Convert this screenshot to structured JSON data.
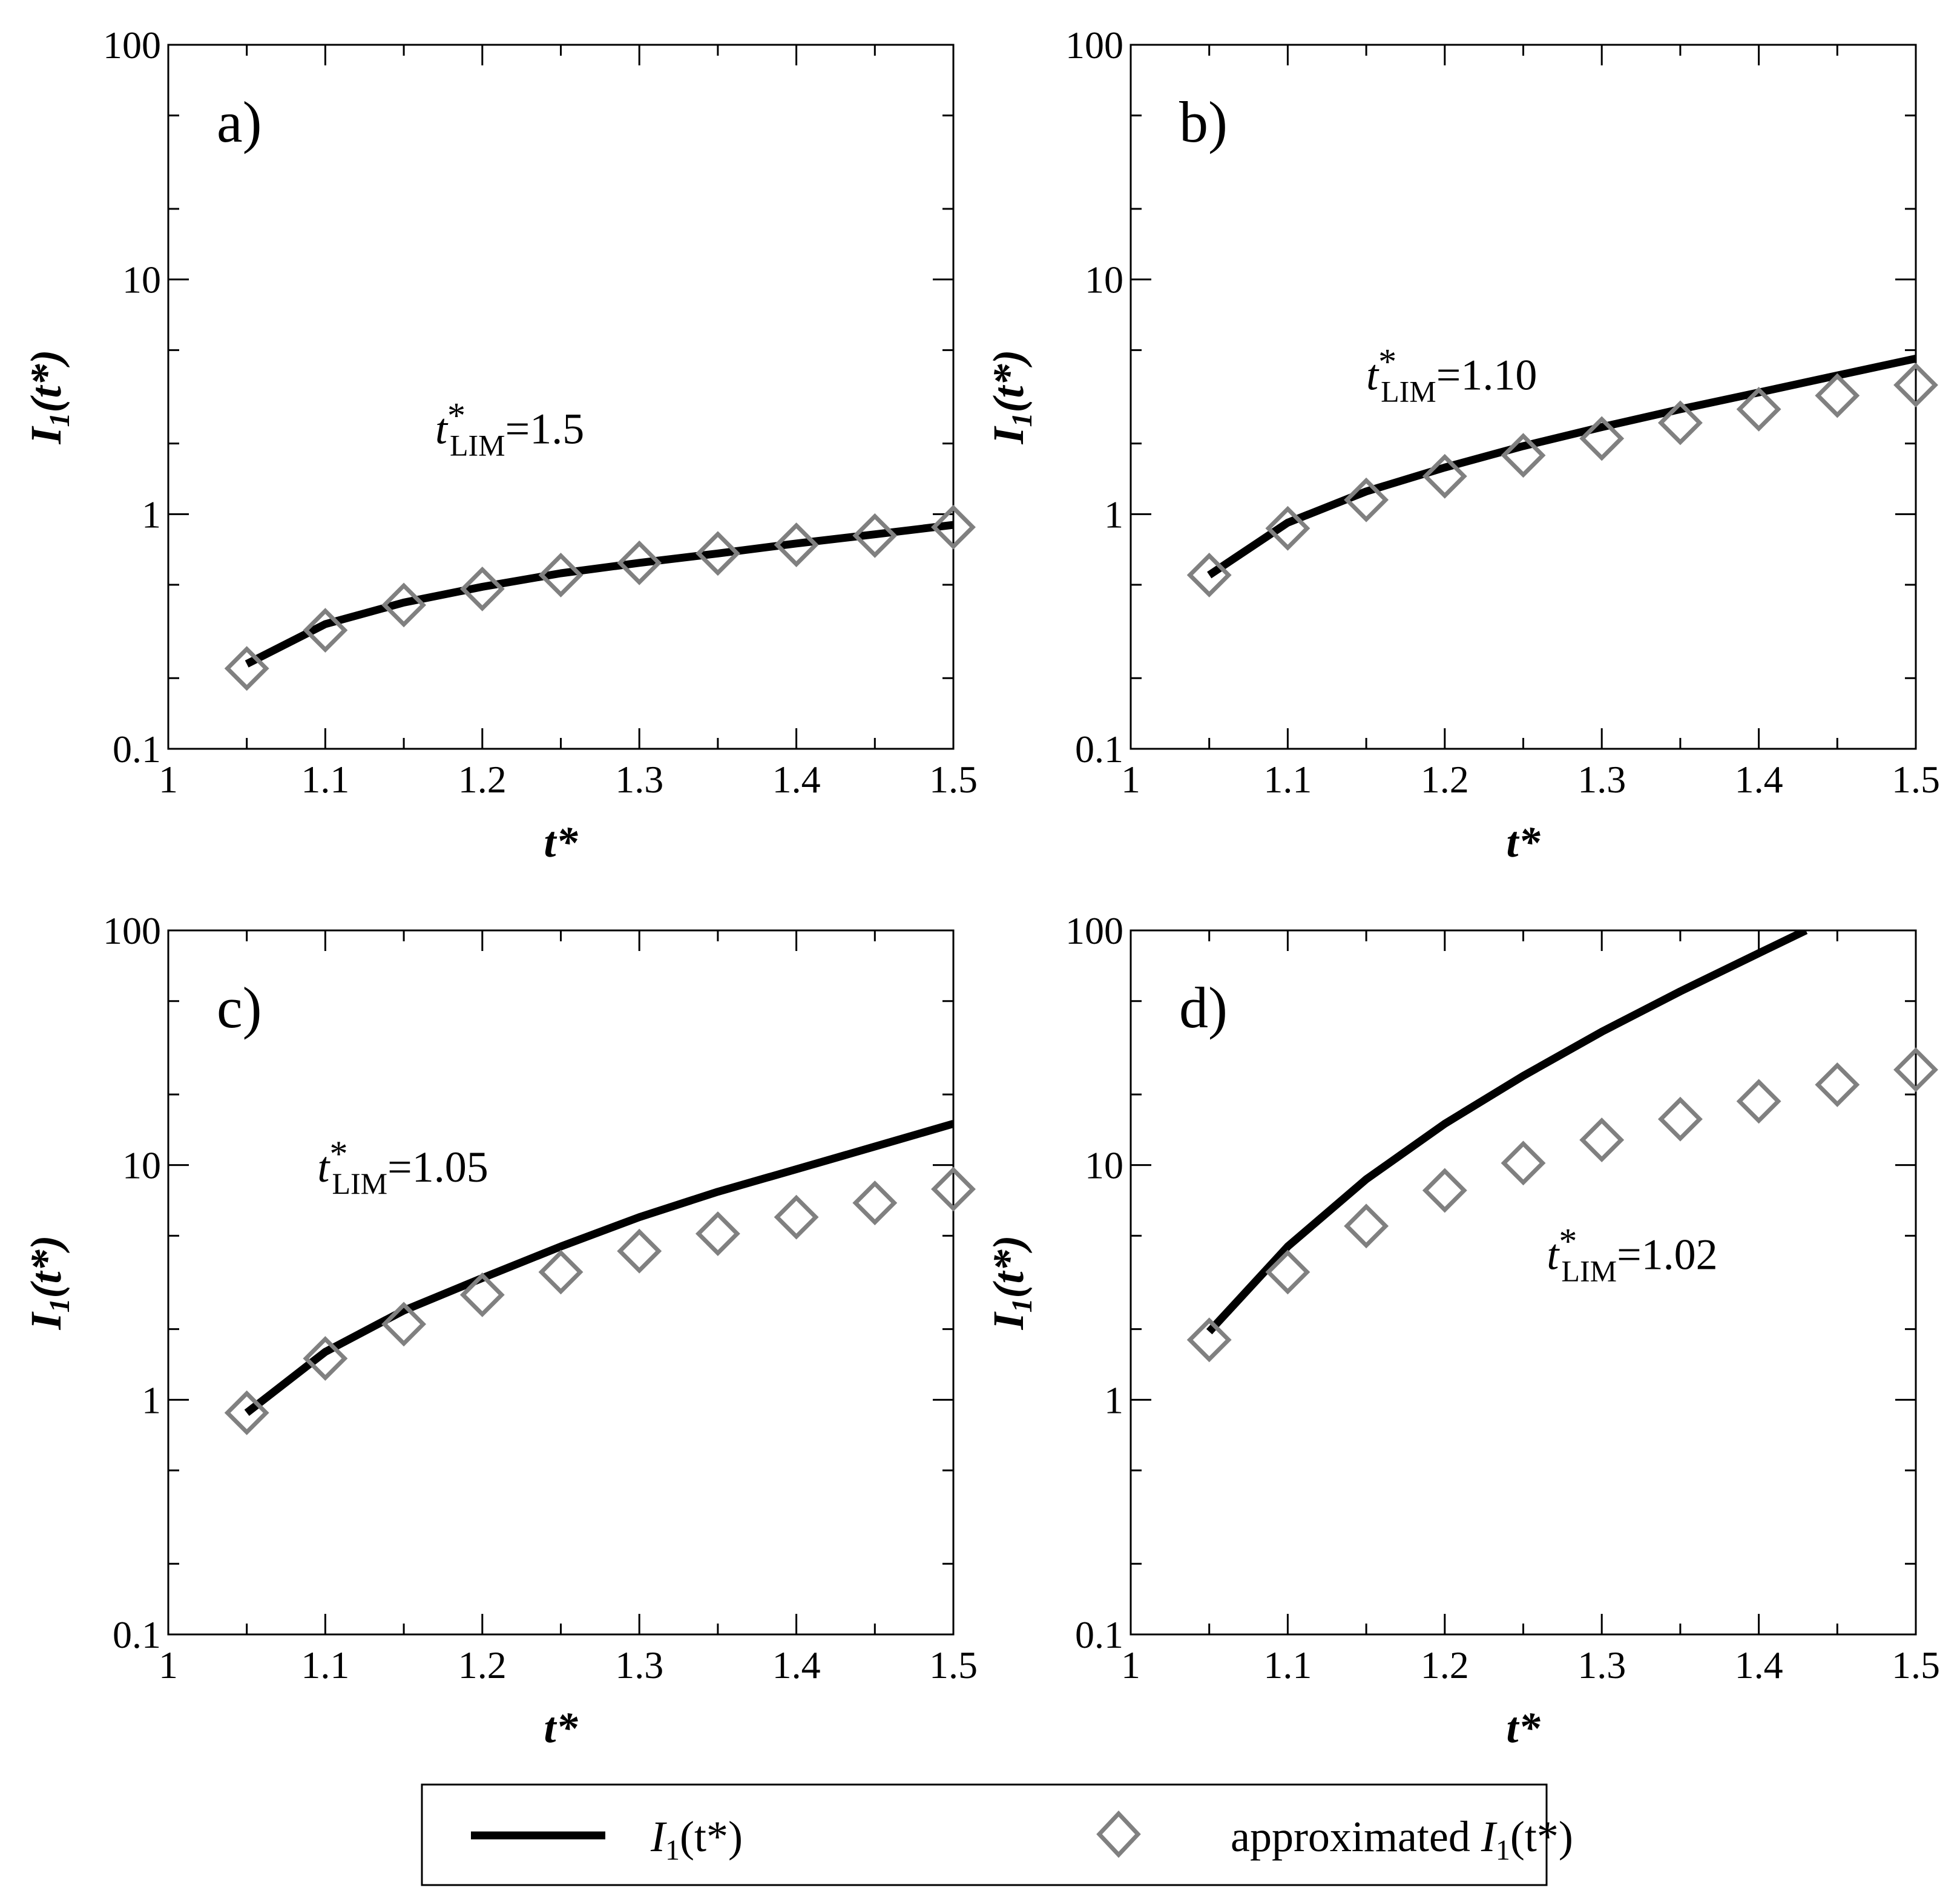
{
  "chart_data": [
    {
      "type": "line",
      "panel_label": "a)",
      "xlabel": "t*",
      "ylabel_main": "I",
      "ylabel_sub": "1",
      "ylabel_rest": "(t*)",
      "xlim": [
        1,
        1.5
      ],
      "ylim": [
        0.1,
        100
      ],
      "yscale": "log",
      "x_ticks": [
        1,
        1.1,
        1.2,
        1.3,
        1.4,
        1.5
      ],
      "x_tick_labels": [
        "1",
        "1.1",
        "1.2",
        "1.3",
        "1.4",
        "1.5"
      ],
      "y_ticks": [
        0.1,
        1,
        10,
        100
      ],
      "y_tick_labels": [
        "0.1",
        "1",
        "10",
        "100"
      ],
      "annotation": {
        "t": "t",
        "sup": "*",
        "sub": "LIM",
        "value": "=1.5"
      },
      "annotation_anchor": {
        "x": 1.17,
        "y": 2.0
      },
      "series": [
        {
          "name": "I1(t*)",
          "style": "line",
          "x": [
            1.05,
            1.1,
            1.15,
            1.2,
            1.25,
            1.3,
            1.35,
            1.4,
            1.45,
            1.5
          ],
          "y": [
            0.23,
            0.34,
            0.42,
            0.49,
            0.56,
            0.62,
            0.68,
            0.75,
            0.82,
            0.9
          ]
        },
        {
          "name": "approximated I1(t*)",
          "style": "marker",
          "x": [
            1.05,
            1.1,
            1.15,
            1.2,
            1.25,
            1.3,
            1.35,
            1.4,
            1.45,
            1.5
          ],
          "y": [
            0.22,
            0.32,
            0.41,
            0.48,
            0.55,
            0.62,
            0.68,
            0.74,
            0.81,
            0.88
          ]
        }
      ]
    },
    {
      "type": "line",
      "panel_label": "b)",
      "xlabel": "t*",
      "ylabel_main": "I",
      "ylabel_sub": "1",
      "ylabel_rest": "(t*)",
      "xlim": [
        1,
        1.5
      ],
      "ylim": [
        0.1,
        100
      ],
      "yscale": "log",
      "x_ticks": [
        1,
        1.1,
        1.2,
        1.3,
        1.4,
        1.5
      ],
      "x_tick_labels": [
        "1",
        "1.1",
        "1.2",
        "1.3",
        "1.4",
        "1.5"
      ],
      "y_ticks": [
        0.1,
        1,
        10,
        100
      ],
      "y_tick_labels": [
        "0.1",
        "1",
        "10",
        "100"
      ],
      "annotation": {
        "t": "t",
        "sup": "*",
        "sub": "LIM",
        "value": "=1.10"
      },
      "annotation_anchor": {
        "x": 1.15,
        "y": 3.4
      },
      "series": [
        {
          "name": "I1(t*)",
          "style": "line",
          "x": [
            1.05,
            1.1,
            1.15,
            1.2,
            1.25,
            1.3,
            1.35,
            1.4,
            1.45,
            1.5
          ],
          "y": [
            0.55,
            0.92,
            1.25,
            1.58,
            1.95,
            2.35,
            2.8,
            3.3,
            3.9,
            4.6
          ]
        },
        {
          "name": "approximated I1(t*)",
          "style": "marker",
          "x": [
            1.05,
            1.1,
            1.15,
            1.2,
            1.25,
            1.3,
            1.35,
            1.4,
            1.45,
            1.5
          ],
          "y": [
            0.55,
            0.87,
            1.15,
            1.45,
            1.78,
            2.1,
            2.45,
            2.8,
            3.2,
            3.55
          ]
        }
      ]
    },
    {
      "type": "line",
      "panel_label": "c)",
      "xlabel": "t*",
      "ylabel_main": "I",
      "ylabel_sub": "1",
      "ylabel_rest": "(t*)",
      "xlim": [
        1,
        1.5
      ],
      "ylim": [
        0.1,
        100
      ],
      "yscale": "log",
      "x_ticks": [
        1,
        1.1,
        1.2,
        1.3,
        1.4,
        1.5
      ],
      "x_tick_labels": [
        "1",
        "1.1",
        "1.2",
        "1.3",
        "1.4",
        "1.5"
      ],
      "y_ticks": [
        0.1,
        1,
        10,
        100
      ],
      "y_tick_labels": [
        "0.1",
        "1",
        "10",
        "100"
      ],
      "annotation": {
        "t": "t",
        "sup": "*",
        "sub": "LIM",
        "value": "=1.05"
      },
      "annotation_anchor": {
        "x": 1.095,
        "y": 8.5
      },
      "series": [
        {
          "name": "I1(t*)",
          "style": "line",
          "x": [
            1.05,
            1.1,
            1.15,
            1.2,
            1.25,
            1.3,
            1.35,
            1.4,
            1.45,
            1.5
          ],
          "y": [
            0.88,
            1.6,
            2.4,
            3.3,
            4.5,
            6.0,
            7.7,
            9.6,
            12.0,
            15.0
          ]
        },
        {
          "name": "approximated I1(t*)",
          "style": "marker",
          "x": [
            1.05,
            1.1,
            1.15,
            1.2,
            1.25,
            1.3,
            1.35,
            1.4,
            1.45,
            1.5
          ],
          "y": [
            0.88,
            1.5,
            2.1,
            2.8,
            3.5,
            4.3,
            5.1,
            6.0,
            6.9,
            7.9
          ]
        }
      ]
    },
    {
      "type": "line",
      "panel_label": "d)",
      "xlabel": "t*",
      "ylabel_main": "I",
      "ylabel_sub": "1",
      "ylabel_rest": "(t*)",
      "xlim": [
        1,
        1.5
      ],
      "ylim": [
        0.1,
        100
      ],
      "yscale": "log",
      "x_ticks": [
        1,
        1.1,
        1.2,
        1.3,
        1.4,
        1.5
      ],
      "x_tick_labels": [
        "1",
        "1.1",
        "1.2",
        "1.3",
        "1.4",
        "1.5"
      ],
      "y_ticks": [
        0.1,
        1,
        10,
        100
      ],
      "y_tick_labels": [
        "0.1",
        "1",
        "10",
        "100"
      ],
      "annotation": {
        "t": "t",
        "sup": "*",
        "sub": "LIM",
        "value": "=1.02"
      },
      "annotation_anchor": {
        "x": 1.265,
        "y": 3.6
      },
      "series": [
        {
          "name": "I1(t*)",
          "style": "line",
          "x": [
            1.05,
            1.1,
            1.15,
            1.2,
            1.25,
            1.3,
            1.35,
            1.4,
            1.43
          ],
          "y": [
            1.95,
            4.5,
            8.7,
            15.0,
            24.0,
            37.0,
            55.0,
            80.0,
            100.0
          ]
        },
        {
          "name": "approximated I1(t*)",
          "style": "marker",
          "x": [
            1.05,
            1.1,
            1.15,
            1.2,
            1.25,
            1.3,
            1.35,
            1.4,
            1.45,
            1.5
          ],
          "y": [
            1.8,
            3.5,
            5.5,
            7.8,
            10.2,
            12.8,
            15.7,
            18.7,
            22.0,
            25.5
          ]
        }
      ]
    }
  ],
  "legend": {
    "line_label": {
      "main": "I",
      "sub": "1",
      "rest": "(t*)"
    },
    "marker_label": {
      "prefix": "approximated ",
      "main": "I",
      "sub": "1",
      "rest": "(t*)"
    }
  },
  "colors": {
    "line": "#000000",
    "marker": "#808080",
    "axis": "#000000"
  }
}
